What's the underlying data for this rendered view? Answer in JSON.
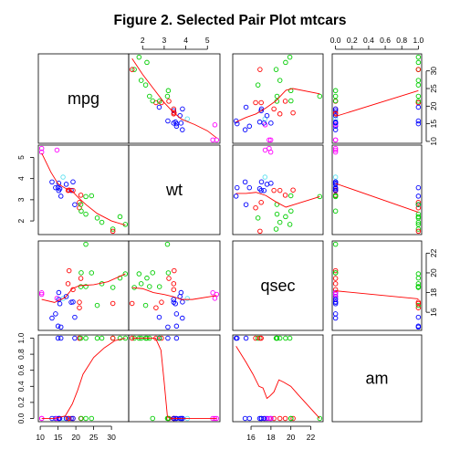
{
  "chart_data": {
    "type": "scatter",
    "title": "Figure 2. Selected Pair Plot mtcars",
    "variables": [
      "mpg",
      "wt",
      "qsec",
      "am"
    ],
    "ranges": {
      "mpg": [
        10.4,
        33.9
      ],
      "wt": [
        1.513,
        5.424
      ],
      "qsec": [
        14.5,
        22.9
      ],
      "am": [
        0,
        1
      ]
    },
    "ticks": {
      "mpg": [
        10,
        15,
        20,
        25,
        30
      ],
      "wt": [
        2,
        3,
        4,
        5
      ],
      "qsec": [
        16,
        18,
        20,
        22
      ],
      "am": [
        0.0,
        0.2,
        0.4,
        0.6,
        0.8,
        1.0
      ]
    },
    "tick_labels": {
      "mpg": [
        "10",
        "15",
        "20",
        "25",
        "30"
      ],
      "wt": [
        "2",
        "3",
        "4",
        "5"
      ],
      "qsec": [
        "16",
        "18",
        "20",
        "22"
      ],
      "am": [
        "0.0",
        "0.2",
        "0.4",
        "0.6",
        "0.8",
        "1.0"
      ]
    },
    "colors": {
      "4": "#00cd00",
      "6": "#ff0000",
      "8": "#0000ff",
      "other": "#ff00ff",
      "special": "#5fe1f0",
      "smooth": "#ff0000"
    },
    "points": [
      {
        "mpg": 21.0,
        "wt": 2.62,
        "qsec": 16.46,
        "am": 1,
        "g": "6"
      },
      {
        "mpg": 21.0,
        "wt": 2.875,
        "qsec": 17.02,
        "am": 1,
        "g": "6"
      },
      {
        "mpg": 22.8,
        "wt": 2.32,
        "qsec": 18.61,
        "am": 1,
        "g": "4"
      },
      {
        "mpg": 21.4,
        "wt": 3.215,
        "qsec": 19.44,
        "am": 0,
        "g": "6"
      },
      {
        "mpg": 18.7,
        "wt": 3.44,
        "qsec": 17.02,
        "am": 0,
        "g": "8"
      },
      {
        "mpg": 18.1,
        "wt": 3.46,
        "qsec": 20.22,
        "am": 0,
        "g": "6"
      },
      {
        "mpg": 14.3,
        "wt": 3.57,
        "qsec": 15.84,
        "am": 0,
        "g": "8"
      },
      {
        "mpg": 24.4,
        "wt": 3.19,
        "qsec": 20.0,
        "am": 0,
        "g": "4"
      },
      {
        "mpg": 22.8,
        "wt": 3.15,
        "qsec": 22.9,
        "am": 0,
        "g": "4"
      },
      {
        "mpg": 19.2,
        "wt": 3.44,
        "qsec": 18.3,
        "am": 0,
        "g": "6"
      },
      {
        "mpg": 17.8,
        "wt": 3.44,
        "qsec": 18.9,
        "am": 0,
        "g": "6"
      },
      {
        "mpg": 16.4,
        "wt": 4.07,
        "qsec": 17.4,
        "am": 0,
        "g": "special"
      },
      {
        "mpg": 17.3,
        "wt": 3.73,
        "qsec": 17.6,
        "am": 0,
        "g": "8"
      },
      {
        "mpg": 15.2,
        "wt": 3.78,
        "qsec": 18.0,
        "am": 0,
        "g": "8"
      },
      {
        "mpg": 10.4,
        "wt": 5.25,
        "qsec": 17.98,
        "am": 0,
        "g": "other"
      },
      {
        "mpg": 10.4,
        "wt": 5.424,
        "qsec": 17.82,
        "am": 0,
        "g": "other"
      },
      {
        "mpg": 14.7,
        "wt": 5.345,
        "qsec": 17.42,
        "am": 0,
        "g": "other"
      },
      {
        "mpg": 32.4,
        "wt": 2.2,
        "qsec": 19.47,
        "am": 1,
        "g": "4"
      },
      {
        "mpg": 30.4,
        "wt": 1.615,
        "qsec": 18.52,
        "am": 1,
        "g": "4"
      },
      {
        "mpg": 33.9,
        "wt": 1.835,
        "qsec": 19.9,
        "am": 1,
        "g": "4"
      },
      {
        "mpg": 21.5,
        "wt": 2.465,
        "qsec": 20.01,
        "am": 0,
        "g": "4"
      },
      {
        "mpg": 15.5,
        "wt": 3.52,
        "qsec": 16.87,
        "am": 0,
        "g": "8"
      },
      {
        "mpg": 15.2,
        "wt": 3.435,
        "qsec": 17.3,
        "am": 0,
        "g": "8"
      },
      {
        "mpg": 13.3,
        "wt": 3.84,
        "qsec": 15.41,
        "am": 0,
        "g": "8"
      },
      {
        "mpg": 19.2,
        "wt": 3.845,
        "qsec": 17.05,
        "am": 0,
        "g": "8"
      },
      {
        "mpg": 27.3,
        "wt": 1.935,
        "qsec": 18.9,
        "am": 1,
        "g": "4"
      },
      {
        "mpg": 26.0,
        "wt": 2.14,
        "qsec": 16.7,
        "am": 1,
        "g": "4"
      },
      {
        "mpg": 30.4,
        "wt": 1.513,
        "qsec": 16.9,
        "am": 1,
        "g": "6"
      },
      {
        "mpg": 15.8,
        "wt": 3.17,
        "qsec": 14.5,
        "am": 1,
        "g": "8"
      },
      {
        "mpg": 19.7,
        "wt": 2.77,
        "qsec": 15.5,
        "am": 1,
        "g": "8"
      },
      {
        "mpg": 15.0,
        "wt": 3.57,
        "qsec": 14.6,
        "am": 1,
        "g": "8"
      },
      {
        "mpg": 21.4,
        "wt": 2.78,
        "qsec": 18.6,
        "am": 1,
        "g": "4"
      }
    ],
    "smooth_lines": {
      "wt_vs_mpg": [
        [
          10.4,
          5.2
        ],
        [
          13.0,
          4.3
        ],
        [
          15.0,
          3.75
        ],
        [
          17.0,
          3.55
        ],
        [
          19.0,
          3.4
        ],
        [
          21.0,
          3.05
        ],
        [
          23.0,
          2.75
        ],
        [
          26.0,
          2.35
        ],
        [
          30.0,
          2.0
        ],
        [
          33.9,
          1.8
        ]
      ],
      "qsec_vs_mpg": [
        [
          10.4,
          17.3
        ],
        [
          14.0,
          17.0
        ],
        [
          17.0,
          17.5
        ],
        [
          19.0,
          18.4
        ],
        [
          21.0,
          18.7
        ],
        [
          25.0,
          18.8
        ],
        [
          29.0,
          19.1
        ],
        [
          33.9,
          19.9
        ]
      ],
      "am_vs_mpg": [
        [
          10.4,
          0.0
        ],
        [
          14.0,
          0.0
        ],
        [
          17.0,
          0.03
        ],
        [
          19.0,
          0.18
        ],
        [
          20.5,
          0.35
        ],
        [
          22.0,
          0.55
        ],
        [
          25.0,
          0.76
        ],
        [
          28.0,
          0.88
        ],
        [
          31.0,
          0.97
        ],
        [
          33.9,
          1.0
        ]
      ],
      "mpg_vs_wt": [
        [
          1.513,
          33.5
        ],
        [
          2.0,
          29.0
        ],
        [
          2.5,
          25.0
        ],
        [
          3.0,
          21.0
        ],
        [
          3.4,
          18.4
        ],
        [
          3.8,
          16.3
        ],
        [
          4.4,
          14.8
        ],
        [
          5.0,
          13.0
        ],
        [
          5.424,
          11.0
        ]
      ],
      "qsec_vs_wt": [
        [
          1.513,
          18.5
        ],
        [
          2.0,
          18.4
        ],
        [
          2.5,
          18.0
        ],
        [
          3.0,
          17.8
        ],
        [
          3.4,
          17.6
        ],
        [
          3.8,
          17.3
        ],
        [
          4.3,
          17.3
        ],
        [
          5.424,
          17.7
        ]
      ],
      "am_vs_wt": [
        [
          1.513,
          1.0
        ],
        [
          2.2,
          1.0
        ],
        [
          2.6,
          1.0
        ],
        [
          2.85,
          0.85
        ],
        [
          3.0,
          0.45
        ],
        [
          3.15,
          0.02
        ],
        [
          3.3,
          0.0
        ],
        [
          5.424,
          0.0
        ]
      ],
      "mpg_vs_qsec": [
        [
          14.5,
          15.5
        ],
        [
          15.5,
          16.8
        ],
        [
          16.5,
          17.8
        ],
        [
          17.5,
          19.5
        ],
        [
          18.5,
          21.5
        ],
        [
          19.5,
          24.5
        ],
        [
          20.2,
          25.0
        ],
        [
          22.9,
          23.5
        ]
      ],
      "wt_vs_qsec": [
        [
          14.5,
          3.3
        ],
        [
          15.5,
          3.3
        ],
        [
          16.5,
          3.35
        ],
        [
          17.5,
          3.2
        ],
        [
          18.5,
          2.9
        ],
        [
          19.5,
          2.65
        ],
        [
          20.5,
          2.8
        ],
        [
          22.9,
          3.15
        ]
      ],
      "am_vs_qsec": [
        [
          14.5,
          0.9
        ],
        [
          15.5,
          0.7
        ],
        [
          16.2,
          0.55
        ],
        [
          16.8,
          0.4
        ],
        [
          17.2,
          0.38
        ],
        [
          17.6,
          0.25
        ],
        [
          17.9,
          0.28
        ],
        [
          18.3,
          0.33
        ],
        [
          18.8,
          0.48
        ],
        [
          19.3,
          0.45
        ],
        [
          20.0,
          0.4
        ],
        [
          20.7,
          0.3
        ],
        [
          22.9,
          0.0
        ]
      ],
      "mpg_vs_am": [
        [
          0,
          17.1
        ],
        [
          1,
          24.4
        ]
      ],
      "wt_vs_am": [
        [
          0,
          3.77
        ],
        [
          1,
          2.41
        ]
      ],
      "qsec_vs_am": [
        [
          0,
          18.18
        ],
        [
          1,
          17.36
        ]
      ]
    }
  }
}
